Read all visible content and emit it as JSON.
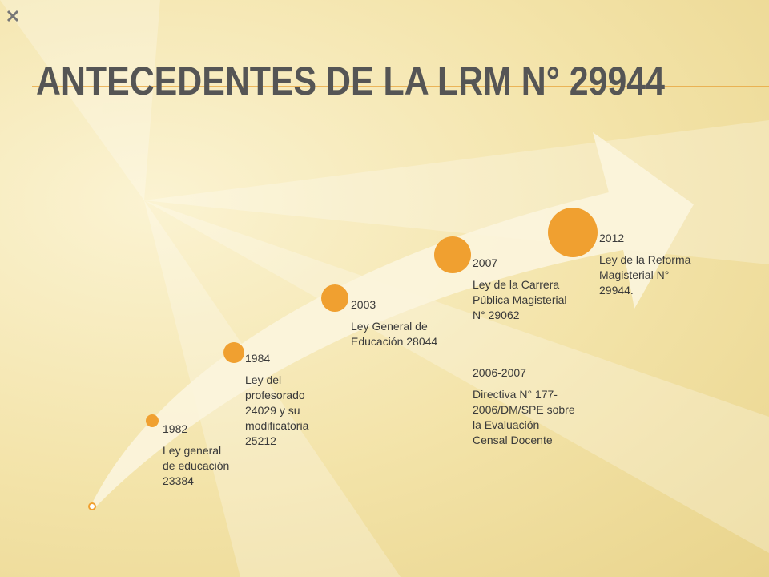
{
  "title": "ANTECEDENTES DE LA LRM N° 29944",
  "events": [
    {
      "year": "1982",
      "text": "Ley general de educación 23384"
    },
    {
      "year": "1984",
      "text": "Ley del profesorado 24029 y su modificatoria 25212"
    },
    {
      "year": "2003",
      "text": "Ley General de Educación 28044"
    },
    {
      "year": "2007",
      "text": "Ley de la Carrera Pública Magisterial N° 29062"
    },
    {
      "year": "2006-2007",
      "text": "Directiva N° 177-2006/DM/SPE sobre la Evaluación Censal Docente"
    },
    {
      "year": "2012",
      "text": "Ley de la Reforma Magisterial N° 29944."
    }
  ]
}
